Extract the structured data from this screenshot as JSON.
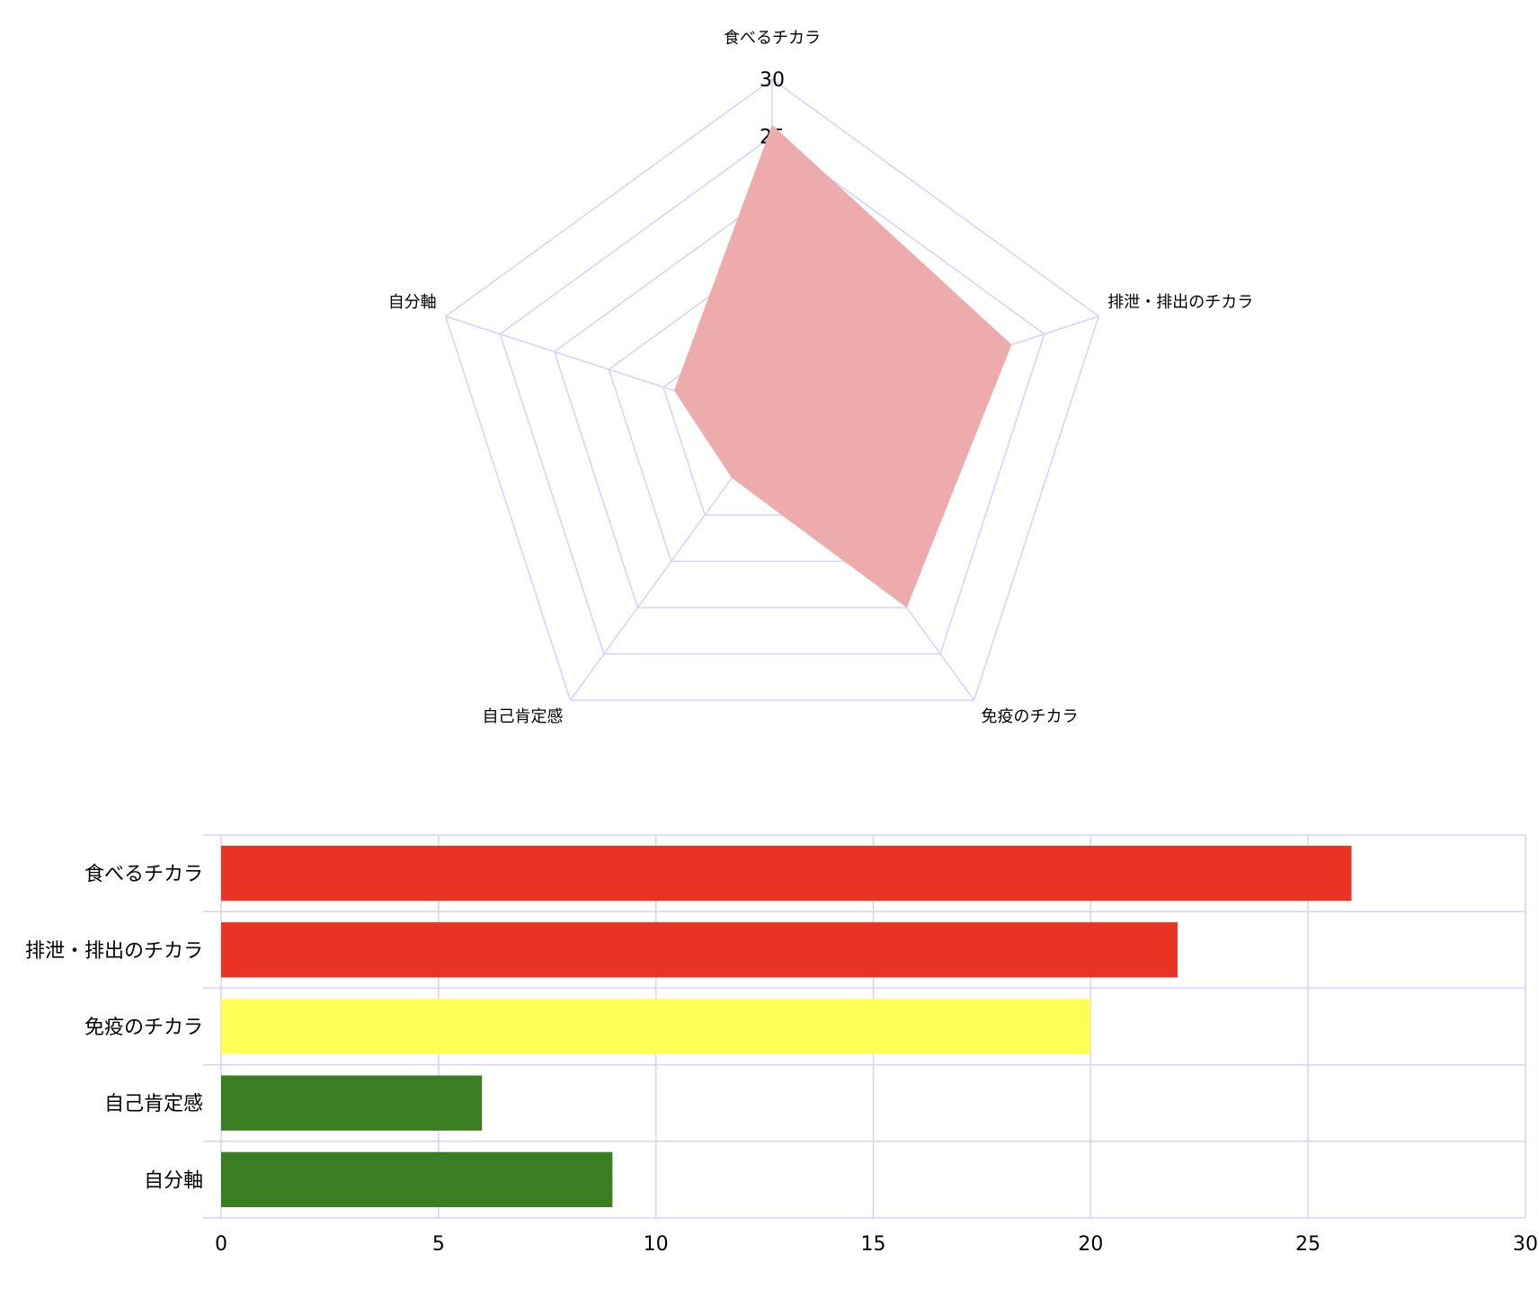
{
  "chart_data": [
    {
      "type": "radar",
      "axes": [
        "食べるチカラ",
        "排泄・排出のチカラ",
        "免疫のチカラ",
        "自己肯定感",
        "自分軸"
      ],
      "values": [
        26,
        22,
        20,
        6,
        9
      ],
      "rlim": [
        0,
        30
      ],
      "rticks": [
        30,
        25
      ],
      "fill_color": "#eeabab",
      "grid_color": "#d4d0ff"
    },
    {
      "type": "bar",
      "orientation": "horizontal",
      "categories": [
        "食べるチカラ",
        "排泄・排出のチカラ",
        "免疫のチカラ",
        "自己肯定感",
        "自分軸"
      ],
      "values": [
        26,
        22,
        20,
        6,
        9
      ],
      "colors": [
        "#e93324",
        "#e93324",
        "#ffff55",
        "#3a7d22",
        "#3a7d22"
      ],
      "xlim": [
        0,
        30
      ],
      "xticks": [
        0,
        5,
        10,
        15,
        20,
        25,
        30
      ],
      "grid": true,
      "grid_color": "#d4d0ff"
    }
  ]
}
